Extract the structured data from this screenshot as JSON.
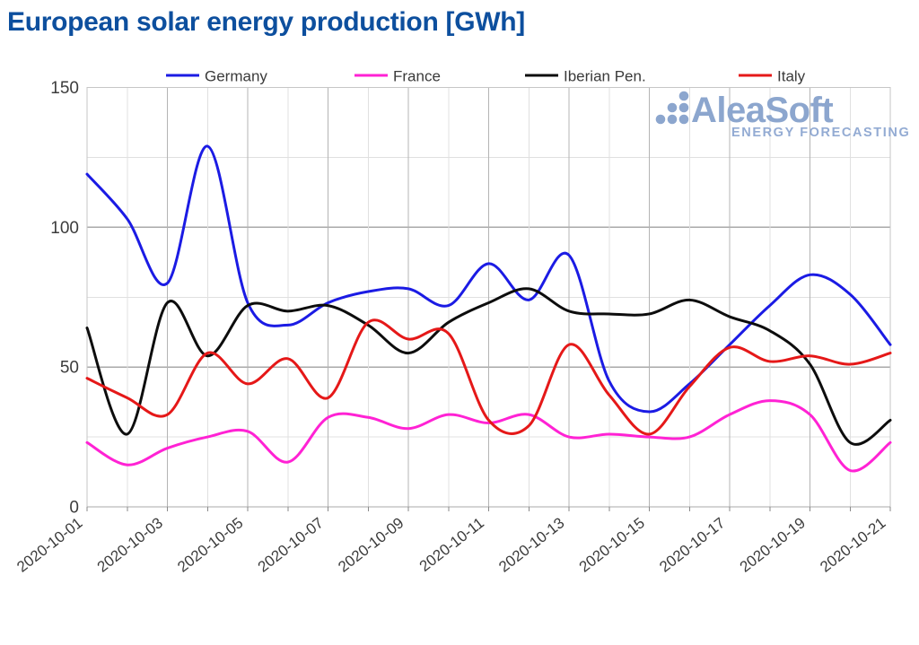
{
  "title": "European solar energy production [GWh]",
  "logo": {
    "brand": "AleaSoft",
    "tagline": "ENERGY FORECASTING"
  },
  "chart_data": {
    "type": "line",
    "title": "European solar energy production [GWh]",
    "x": [
      "2020-10-01",
      "2020-10-02",
      "2020-10-03",
      "2020-10-04",
      "2020-10-05",
      "2020-10-06",
      "2020-10-07",
      "2020-10-08",
      "2020-10-09",
      "2020-10-10",
      "2020-10-11",
      "2020-10-12",
      "2020-10-13",
      "2020-10-14",
      "2020-10-15",
      "2020-10-16",
      "2020-10-17",
      "2020-10-18",
      "2020-10-19",
      "2020-10-20",
      "2020-10-21"
    ],
    "x_tick_labels": [
      "2020-10-01",
      "2020-10-03",
      "2020-10-05",
      "2020-10-07",
      "2020-10-09",
      "2020-10-11",
      "2020-10-13",
      "2020-10-15",
      "2020-10-17",
      "2020-10-19",
      "2020-10-21"
    ],
    "xlabel": "",
    "ylabel": "",
    "ylim": [
      0,
      150
    ],
    "yticks": [
      0,
      50,
      100,
      150
    ],
    "yticks_minor": [
      25,
      75,
      125
    ],
    "grid": true,
    "legend_position": "top",
    "smooth": true,
    "series": [
      {
        "name": "Germany",
        "color": "#1b1be4",
        "values": [
          119,
          103,
          80,
          129,
          73,
          65,
          73,
          77,
          78,
          72,
          87,
          74,
          90,
          45,
          34,
          44,
          58,
          72,
          83,
          76,
          58
        ]
      },
      {
        "name": "France",
        "color": "#ff22d4",
        "values": [
          23,
          15,
          21,
          25,
          27,
          16,
          32,
          32,
          28,
          33,
          30,
          33,
          25,
          26,
          25,
          25,
          33,
          38,
          33,
          13,
          23
        ]
      },
      {
        "name": "Iberian Pen.",
        "color": "#0d0d0d",
        "values": [
          64,
          26,
          73,
          54,
          72,
          70,
          72,
          65,
          55,
          66,
          73,
          78,
          70,
          69,
          69,
          74,
          68,
          63,
          51,
          23,
          31
        ]
      },
      {
        "name": "Italy",
        "color": "#e51818",
        "values": [
          46,
          39,
          33,
          55,
          44,
          53,
          39,
          66,
          60,
          62,
          31,
          29,
          58,
          40,
          26,
          43,
          57,
          52,
          54,
          51,
          55
        ]
      }
    ]
  },
  "colors": {
    "title": "#0d4f9e",
    "axis_text": "#3c3c3c",
    "legend_text": "#3a3a3a",
    "frame": "#c6c6c6",
    "grid_major": "#a9a9a9",
    "grid_minor": "#e0e0e0",
    "grid_vert_dark": "#b4b4b4",
    "grid_vert_light": "#e0e0e0",
    "tick": "#8a8a8a",
    "logo_blue": "#8ca6ce"
  }
}
